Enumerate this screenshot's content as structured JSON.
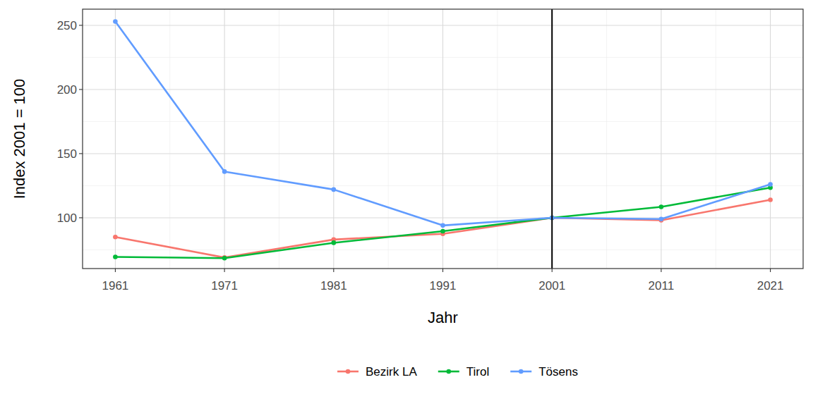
{
  "chart_data": {
    "type": "line",
    "x_label": "Jahr",
    "y_label": "Index 2001 = 100",
    "x": [
      1961,
      1971,
      1981,
      1991,
      2001,
      2011,
      2021
    ],
    "series": [
      {
        "name": "Bezirk LA",
        "color": "#F8766D",
        "marker": "circle",
        "values": [
          85,
          69,
          83,
          87.5,
          100,
          98,
          114
        ]
      },
      {
        "name": "Tirol",
        "color": "#00BA38",
        "marker": "circle",
        "values": [
          69.5,
          68.5,
          80.5,
          89.5,
          100,
          108.5,
          123.5
        ]
      },
      {
        "name": "Tösens",
        "color": "#619CFF",
        "marker": "circle",
        "values": [
          253,
          136,
          122,
          94,
          100,
          99,
          126
        ]
      }
    ],
    "vline": 2001,
    "xlim": [
      1958,
      2024
    ],
    "xticks": [
      1961,
      1971,
      1981,
      1991,
      2001,
      2011,
      2021
    ],
    "ylim": [
      60.4,
      262.6
    ],
    "yticks": [
      100,
      150,
      200,
      250
    ],
    "grid": true,
    "legend": "bottom"
  }
}
